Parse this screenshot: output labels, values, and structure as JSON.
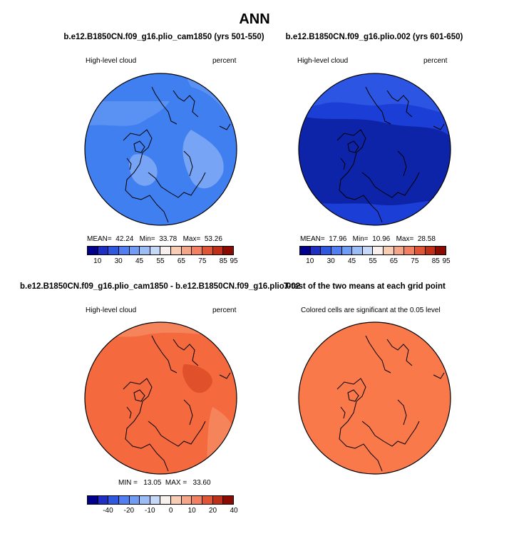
{
  "title": "ANN",
  "panels": [
    {
      "title": "b.e12.B1850CN.f09_g16.plio_cam1850 (yrs 501-550)",
      "variable": "High-level cloud",
      "units": "percent",
      "stats": {
        "mean_label": "MEAN=",
        "mean": "42.24",
        "min_label": "Min=",
        "min": "33.78",
        "max_label": "Max=",
        "max": "53.26"
      },
      "base_color": "#3f7ff0"
    },
    {
      "title": "b.e12.B1850CN.f09_g16.plio.002 (yrs 601-650)",
      "variable": "High-level cloud",
      "units": "percent",
      "stats": {
        "mean_label": "MEAN=",
        "mean": "17.96",
        "min_label": "Min=",
        "min": "10.96",
        "max_label": "Max=",
        "max": "28.58"
      },
      "base_color": "#1b3fd6"
    },
    {
      "title": "b.e12.B1850CN.f09_g16.plio_cam1850 - b.e12.B1850CN.f09_g16.plio.002",
      "variable": "High-level cloud",
      "units": "percent",
      "stats": {
        "min_label": "MIN =",
        "min": "13.05",
        "max_label": "MAX =",
        "max": "33.60"
      },
      "base_color": "#f46a3e"
    },
    {
      "title": "T-test of the two means at each grid point",
      "subtitle": "Colored cells are significant at the 0.05 level",
      "base_color": "#f9794a"
    }
  ],
  "colorbars": {
    "abs": {
      "colors": [
        "#00008c",
        "#1f2fc4",
        "#2f58e0",
        "#4f7ff2",
        "#6f9cf4",
        "#9cbcf6",
        "#c6d8f8",
        "#f7f0ec",
        "#f8cdb4",
        "#f5a688",
        "#f38060",
        "#e05535",
        "#c12f17",
        "#8c0a00"
      ],
      "labels": [
        "10",
        "30",
        "45",
        "55",
        "65",
        "75",
        "85",
        "95"
      ]
    },
    "diff": {
      "colors": [
        "#00008c",
        "#1f2fc4",
        "#2f58e0",
        "#4f7ff2",
        "#6f9cf4",
        "#9cbcf6",
        "#c6d8f8",
        "#f7f0ec",
        "#f8cdb4",
        "#f5a688",
        "#f38060",
        "#e05535",
        "#c12f17",
        "#8c0a00"
      ],
      "labels": [
        "-40",
        "-20",
        "-10",
        "0",
        "10",
        "20",
        "40"
      ]
    }
  }
}
